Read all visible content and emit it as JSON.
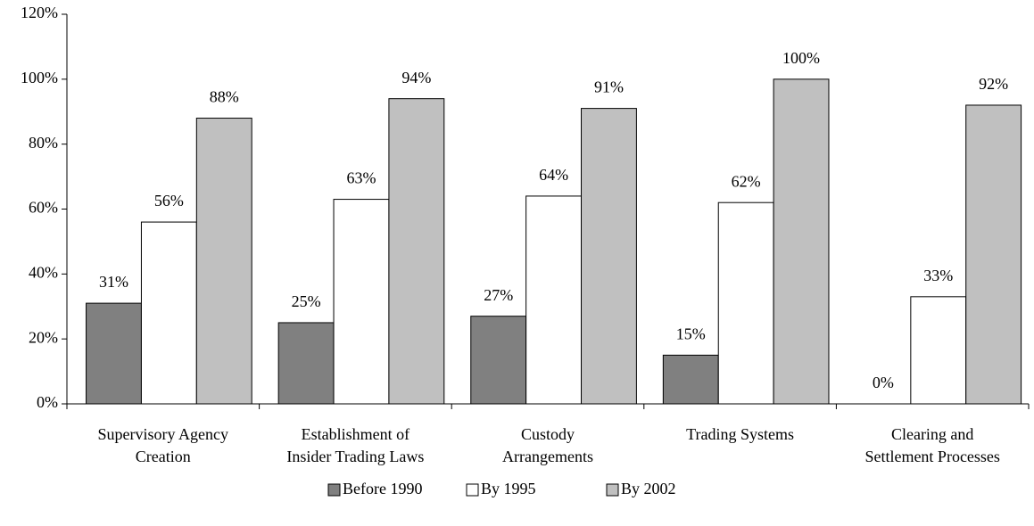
{
  "chart_data": {
    "type": "bar",
    "categories": [
      [
        "Supervisory Agency",
        "Creation"
      ],
      [
        "Establishment of",
        "Insider Trading Laws"
      ],
      [
        "Custody",
        "Arrangements"
      ],
      [
        "Trading Systems"
      ],
      [
        "Clearing and",
        "Settlement Processes"
      ]
    ],
    "series": [
      {
        "name": "Before 1990",
        "color": "#808080",
        "values": [
          31,
          25,
          27,
          15,
          0
        ],
        "value_labels": [
          "31%",
          "25%",
          "27%",
          "15%",
          "0%"
        ]
      },
      {
        "name": "By 1995",
        "color": "#ffffff",
        "values": [
          56,
          63,
          64,
          62,
          33
        ],
        "value_labels": [
          "56%",
          "63%",
          "64%",
          "62%",
          "33%"
        ]
      },
      {
        "name": "By 2002",
        "color": "#c0c0c0",
        "values": [
          88,
          94,
          91,
          100,
          92
        ],
        "value_labels": [
          "88%",
          "94%",
          "91%",
          "100%",
          "92%"
        ]
      }
    ],
    "ylim": [
      0,
      120
    ],
    "yticks": [
      {
        "value": 0,
        "label": "0%"
      },
      {
        "value": 20,
        "label": "20%"
      },
      {
        "value": 40,
        "label": "40%"
      },
      {
        "value": 60,
        "label": "60%"
      },
      {
        "value": 80,
        "label": "80%"
      },
      {
        "value": 100,
        "label": "100%"
      },
      {
        "value": 120,
        "label": "120%"
      }
    ],
    "legend": "bottom"
  }
}
